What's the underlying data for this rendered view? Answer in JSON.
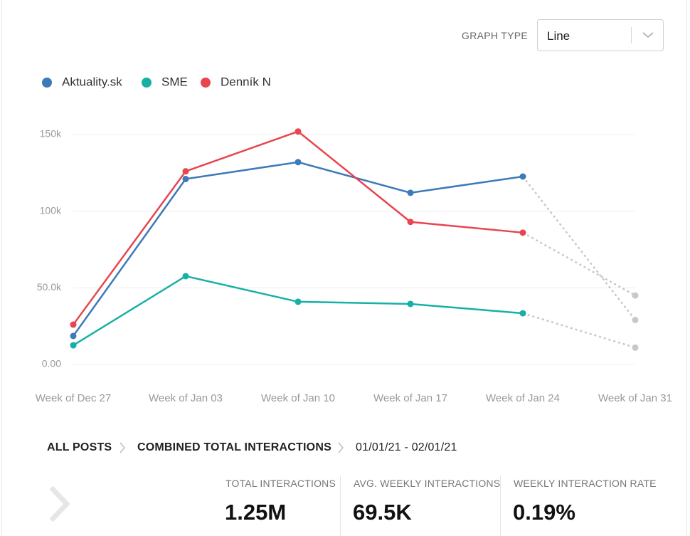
{
  "controls": {
    "graph_type_label": "GRAPH TYPE",
    "graph_type_value": "Line"
  },
  "chart_data": {
    "type": "line",
    "categories": [
      "Week of Dec 27",
      "Week of Jan 03",
      "Week of Jan 10",
      "Week of Jan 17",
      "Week of Jan 24",
      "Week of Jan 31"
    ],
    "series": [
      {
        "name": "Aktuality.sk",
        "color": "#3d7ab8",
        "values": [
          18600,
          121000,
          132000,
          112000,
          122600,
          29000
        ]
      },
      {
        "name": "SME",
        "color": "#16b0a6",
        "values": [
          12500,
          57600,
          40900,
          39500,
          33400,
          11000
        ]
      },
      {
        "name": "Denník N",
        "color": "#e8454f",
        "values": [
          26000,
          126000,
          152000,
          93000,
          86000,
          45000
        ]
      }
    ],
    "ylim": [
      0,
      150000
    ],
    "yticks": [
      {
        "value": 0,
        "label": "0.00"
      },
      {
        "value": 50000,
        "label": "50.0k"
      },
      {
        "value": 100000,
        "label": "100k"
      },
      {
        "value": 150000,
        "label": "150k"
      }
    ],
    "grid": true,
    "incomplete_last_point": true,
    "incomplete_color": "#c8c8c8"
  },
  "breadcrumb": [
    "ALL POSTS",
    "COMBINED TOTAL INTERACTIONS",
    "01/01/21 - 02/01/21"
  ],
  "stats": [
    {
      "label": "TOTAL INTERACTIONS",
      "value": "1.25M"
    },
    {
      "label": "AVG. WEEKLY INTERACTIONS",
      "value": "69.5K"
    },
    {
      "label": "WEEKLY INTERACTION RATE",
      "value": "0.19%"
    }
  ]
}
